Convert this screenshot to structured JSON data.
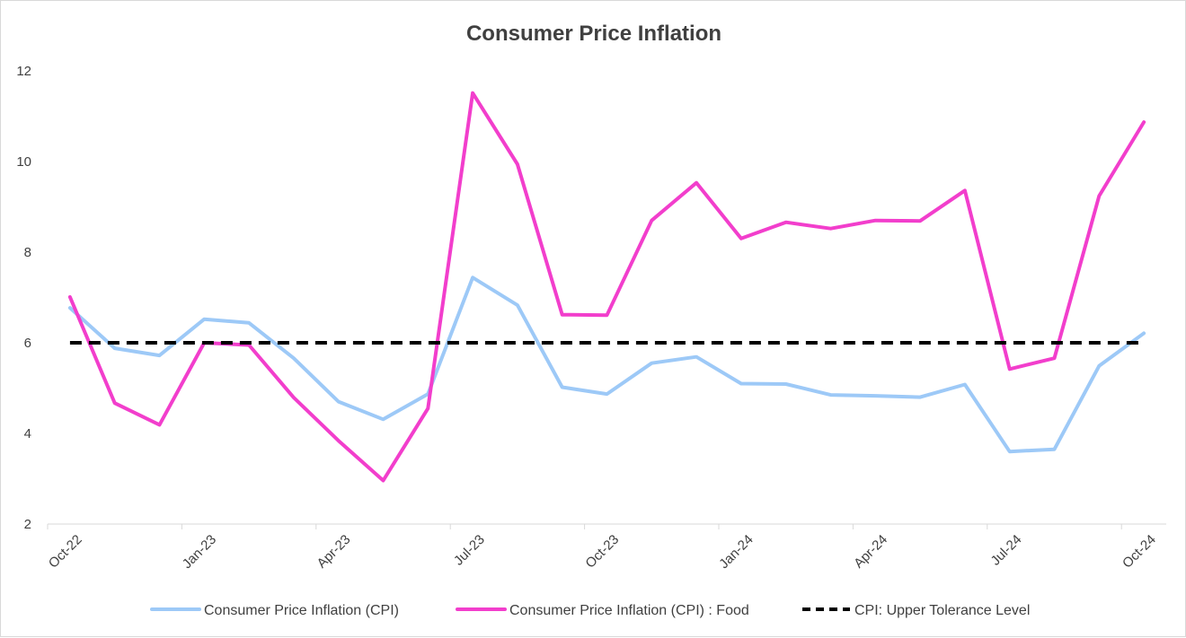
{
  "chart_data": {
    "type": "line",
    "title": "Consumer Price Inflation",
    "x": [
      "Oct-22",
      "Nov-22",
      "Dec-22",
      "Jan-23",
      "Feb-23",
      "Mar-23",
      "Apr-23",
      "May-23",
      "Jun-23",
      "Jul-23",
      "Aug-23",
      "Sep-23",
      "Oct-23",
      "Nov-23",
      "Dec-23",
      "Jan-24",
      "Feb-24",
      "Mar-24",
      "Apr-24",
      "May-24",
      "Jun-24",
      "Jul-24",
      "Aug-24",
      "Sep-24",
      "Oct-24"
    ],
    "x_tick_labels": [
      "Oct-22",
      "Jan-23",
      "Apr-23",
      "Jul-23",
      "Oct-23",
      "Jan-24",
      "Apr-24",
      "Jul-24",
      "Oct-24"
    ],
    "y_ticks": [
      2,
      4,
      6,
      8,
      10,
      12
    ],
    "ylim": [
      2,
      12
    ],
    "grid": false,
    "legend_position": "bottom",
    "series": [
      {
        "name": "Consumer Price Inflation (CPI)",
        "color": "#9dc9f7",
        "dashed": false,
        "values": [
          6.77,
          5.88,
          5.72,
          6.52,
          6.44,
          5.66,
          4.7,
          4.31,
          4.87,
          7.44,
          6.83,
          5.02,
          4.87,
          5.55,
          5.69,
          5.1,
          5.09,
          4.85,
          4.83,
          4.8,
          5.08,
          3.6,
          3.65,
          5.49,
          6.21
        ]
      },
      {
        "name": "Consumer Price Inflation (CPI) : Food",
        "color": "#f23ecc",
        "dashed": false,
        "values": [
          7.01,
          4.67,
          4.19,
          6.0,
          5.95,
          4.79,
          3.84,
          2.96,
          4.55,
          11.51,
          9.94,
          6.62,
          6.61,
          8.7,
          9.53,
          8.3,
          8.66,
          8.52,
          8.7,
          8.69,
          9.36,
          5.42,
          5.66,
          9.24,
          10.87
        ]
      },
      {
        "name": "CPI: Upper Tolerance Level",
        "color": "#000000",
        "dashed": true,
        "values": [
          6,
          6,
          6,
          6,
          6,
          6,
          6,
          6,
          6,
          6,
          6,
          6,
          6,
          6,
          6,
          6,
          6,
          6,
          6,
          6,
          6,
          6,
          6,
          6,
          6
        ]
      }
    ]
  }
}
